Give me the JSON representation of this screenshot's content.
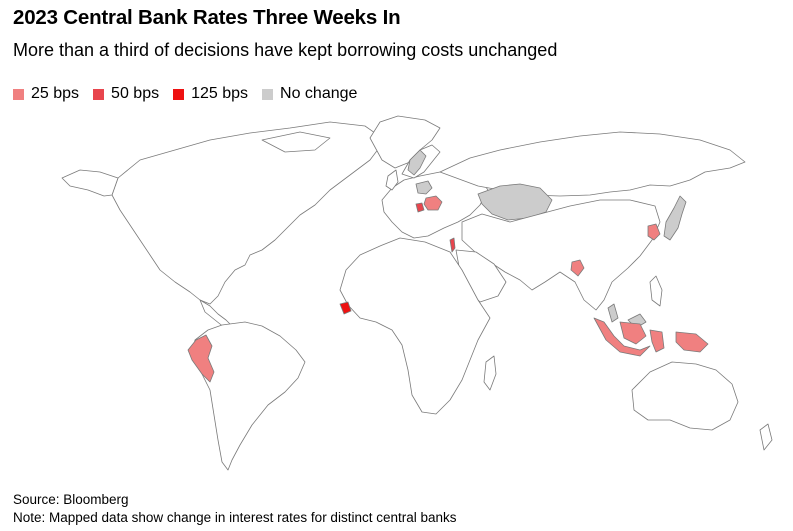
{
  "title": "2023 Central Bank Rates Three Weeks In",
  "subtitle": "More than a third of decisions have kept borrowing costs unchanged",
  "legend": [
    {
      "label": "25 bps",
      "color": "#f08080"
    },
    {
      "label": "50 bps",
      "color": "#e8454d"
    },
    {
      "label": "125 bps",
      "color": "#ee1111"
    },
    {
      "label": "No change",
      "color": "#cccccc"
    }
  ],
  "regions": [
    {
      "name": "Peru",
      "category": "25 bps"
    },
    {
      "name": "Sierra Leone",
      "category": "125 bps"
    },
    {
      "name": "Israel",
      "category": "50 bps"
    },
    {
      "name": "Romania",
      "category": "25 bps"
    },
    {
      "name": "Serbia",
      "category": "50 bps"
    },
    {
      "name": "Bangladesh",
      "category": "25 bps"
    },
    {
      "name": "South Korea",
      "category": "25 bps"
    },
    {
      "name": "Indonesia",
      "category": "25 bps"
    },
    {
      "name": "Malaysia",
      "category": "No change"
    },
    {
      "name": "Japan",
      "category": "No change"
    },
    {
      "name": "Kazakhstan",
      "category": "No change"
    },
    {
      "name": "Poland",
      "category": "No change"
    },
    {
      "name": "Sweden",
      "category": "No change"
    }
  ],
  "source": "Source: Bloomberg",
  "note": "Note: Mapped data show change in interest rates for distinct central banks"
}
